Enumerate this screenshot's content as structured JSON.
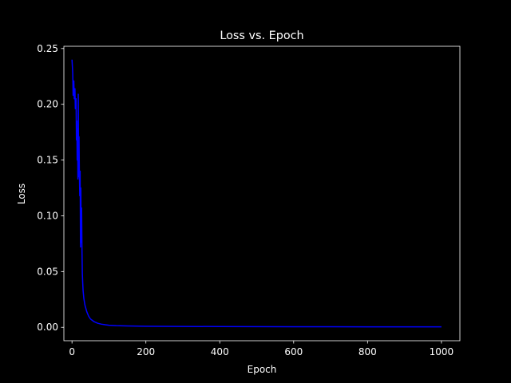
{
  "chart_data": {
    "type": "line",
    "title": "Loss vs. Epoch",
    "xlabel": "Epoch",
    "ylabel": "Loss",
    "xlim": [
      -22,
      1050
    ],
    "ylim": [
      -0.012,
      0.252
    ],
    "xticks": [
      0,
      200,
      400,
      600,
      800,
      1000
    ],
    "xtick_labels": [
      "0",
      "200",
      "400",
      "600",
      "800",
      "1000"
    ],
    "yticks": [
      0.0,
      0.05,
      0.1,
      0.15,
      0.2,
      0.25
    ],
    "ytick_labels": [
      "0.00",
      "0.05",
      "0.10",
      "0.15",
      "0.20",
      "0.25"
    ],
    "grid": false,
    "background": "#000000",
    "foreground": "#ffffff",
    "series": [
      {
        "color": "#0000ff",
        "x": [
          0,
          2,
          3,
          5,
          6,
          8,
          9,
          11,
          12,
          13,
          14,
          15,
          16,
          17,
          18,
          19,
          20,
          21,
          22,
          23,
          24,
          25,
          26,
          27,
          28,
          29,
          30,
          32,
          35,
          40,
          45,
          50,
          60,
          70,
          80,
          90,
          100,
          120,
          150,
          200,
          300,
          400,
          500,
          600,
          700,
          800,
          900,
          1000
        ],
        "y": [
          0.24,
          0.228,
          0.208,
          0.221,
          0.205,
          0.214,
          0.196,
          0.205,
          0.168,
          0.185,
          0.15,
          0.178,
          0.133,
          0.209,
          0.135,
          0.171,
          0.138,
          0.118,
          0.14,
          0.072,
          0.125,
          0.076,
          0.107,
          0.07,
          0.048,
          0.04,
          0.033,
          0.026,
          0.02,
          0.014,
          0.01,
          0.0075,
          0.005,
          0.0036,
          0.0028,
          0.0023,
          0.0019,
          0.0015,
          0.0012,
          0.001,
          0.0008,
          0.0007,
          0.0006,
          0.0005,
          0.0005,
          0.0004,
          0.0004,
          0.0004
        ]
      }
    ]
  }
}
